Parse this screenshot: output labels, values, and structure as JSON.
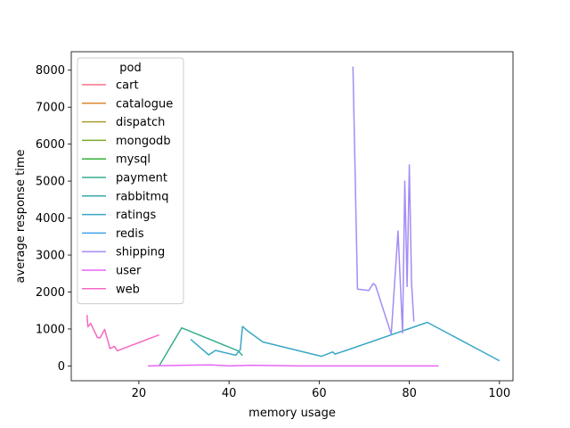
{
  "chart_data": {
    "type": "line",
    "xlabel": "memory usage",
    "ylabel": "average response time",
    "xlim": [
      5,
      103
    ],
    "ylim": [
      -400,
      8500
    ],
    "xticks": [
      20,
      40,
      60,
      80,
      100
    ],
    "yticks": [
      0,
      1000,
      2000,
      3000,
      4000,
      5000,
      6000,
      7000,
      8000
    ],
    "legend": {
      "title": "pod",
      "position": "top-left"
    },
    "series": [
      {
        "name": "cart",
        "color": "#f77189",
        "points": []
      },
      {
        "name": "catalogue",
        "color": "#dc8932",
        "points": []
      },
      {
        "name": "dispatch",
        "color": "#ae9d31",
        "points": []
      },
      {
        "name": "mongodb",
        "color": "#77ab31",
        "points": []
      },
      {
        "name": "mysql",
        "color": "#33b039",
        "points": []
      },
      {
        "name": "payment",
        "color": "#36ad8e",
        "points": [
          [
            24.5,
            0
          ],
          [
            29.5,
            1030
          ],
          [
            42,
            410
          ],
          [
            43,
            280
          ]
        ]
      },
      {
        "name": "rabbitmq",
        "color": "#38aaac",
        "points": []
      },
      {
        "name": "ratings",
        "color": "#39a7c5",
        "points": [
          [
            31.5,
            720
          ],
          [
            35.5,
            300
          ],
          [
            37,
            420
          ],
          [
            41.5,
            290
          ],
          [
            42.5,
            440
          ],
          [
            43,
            1070
          ],
          [
            44,
            960
          ],
          [
            47.5,
            650
          ],
          [
            60.5,
            260
          ],
          [
            63,
            380
          ],
          [
            63.5,
            320
          ],
          [
            66,
            420
          ],
          [
            84,
            1180
          ],
          [
            100,
            140
          ]
        ]
      },
      {
        "name": "redis",
        "color": "#3ba3ec",
        "points": []
      },
      {
        "name": "shipping",
        "color": "#a48cf4",
        "points": [
          [
            67.5,
            8100
          ],
          [
            68.5,
            2080
          ],
          [
            71,
            2040
          ],
          [
            72,
            2230
          ],
          [
            72.5,
            2180
          ],
          [
            76,
            860
          ],
          [
            77.5,
            3650
          ],
          [
            78.5,
            890
          ],
          [
            79,
            5000
          ],
          [
            79.5,
            2150
          ],
          [
            80,
            5440
          ],
          [
            80.5,
            2240
          ],
          [
            81,
            1200
          ]
        ]
      },
      {
        "name": "user",
        "color": "#e866f4",
        "points": [
          [
            22,
            0
          ],
          [
            26,
            10
          ],
          [
            30,
            20
          ],
          [
            36,
            30
          ],
          [
            40,
            0
          ],
          [
            45,
            20
          ],
          [
            55,
            0
          ],
          [
            70,
            0
          ],
          [
            86.5,
            0
          ]
        ]
      },
      {
        "name": "web",
        "color": "#f668c2",
        "points": [
          [
            8.5,
            1380
          ],
          [
            8.7,
            1060
          ],
          [
            9.3,
            1150
          ],
          [
            10.8,
            770
          ],
          [
            11.4,
            760
          ],
          [
            12.4,
            990
          ],
          [
            13.6,
            470
          ],
          [
            14.6,
            530
          ],
          [
            15.2,
            410
          ],
          [
            24.5,
            840
          ]
        ]
      }
    ]
  }
}
